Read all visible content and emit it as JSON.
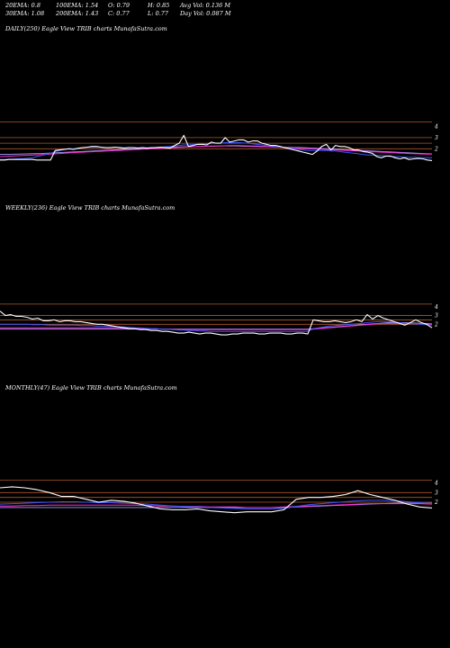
{
  "header": {
    "ema20": "20EMA: 0.8",
    "ema30": "30EMA: 1.08",
    "ema100": "100EMA: 1.54",
    "ema200": "200EMA: 1.43",
    "open": "O: 0.79",
    "close": "C: 0.77",
    "high": "H: 0.85",
    "low": "L: 0.77",
    "avg_vol": "Avg Vol: 0.136  M",
    "day_vol": "Day Vol: 0.087 M"
  },
  "colors": {
    "background": "#000000",
    "price": "#ffffff",
    "ema_short": "#3a56ff",
    "ema_mid": "#ff2ad4",
    "ema_long": "#a0a0ff",
    "level": "#b0562a"
  },
  "chart_data": [
    {
      "type": "line",
      "title": "DAILY(250) Eagle   View  TRIB charts MunafaSutra.com",
      "ylim": [
        0.5,
        5.0
      ],
      "yticks": [
        "4",
        "3",
        "2"
      ],
      "levels": [
        4.4,
        3.0,
        2.5,
        2.0
      ],
      "series": [
        {
          "key": "price",
          "values": [
            1.0,
            1.0,
            1.05,
            1.05,
            1.05,
            1.05,
            1.05,
            1.05,
            1.0,
            1.0,
            1.0,
            1.0,
            1.85,
            1.9,
            1.95,
            2.0,
            1.95,
            2.05,
            2.1,
            2.15,
            2.2,
            2.2,
            2.15,
            2.1,
            2.1,
            2.15,
            2.1,
            2.05,
            2.1,
            2.1,
            2.05,
            2.1,
            2.05,
            2.1,
            2.1,
            2.15,
            2.1,
            2.05,
            2.3,
            2.5,
            3.2,
            2.2,
            2.3,
            2.4,
            2.4,
            2.35,
            2.6,
            2.5,
            2.5,
            3.0,
            2.6,
            2.7,
            2.8,
            2.8,
            2.6,
            2.7,
            2.7,
            2.5,
            2.4,
            2.3,
            2.3,
            2.2,
            2.1,
            2.0,
            1.9,
            1.8,
            1.7,
            1.6,
            1.5,
            1.8,
            2.2,
            2.4,
            1.9,
            2.3,
            2.2,
            2.2,
            2.1,
            1.9,
            1.9,
            1.75,
            1.7,
            1.6,
            1.3,
            1.2,
            1.35,
            1.35,
            1.2,
            1.1,
            1.2,
            1.05,
            1.1,
            1.15,
            1.1,
            1.0,
            0.95
          ]
        },
        {
          "key": "ema_short",
          "values": [
            1.05,
            1.05,
            1.07,
            1.08,
            1.1,
            1.12,
            1.15,
            1.2,
            1.3,
            1.4,
            1.5,
            1.6,
            1.75,
            1.85,
            1.95,
            2.0,
            2.0,
            2.05,
            2.1,
            2.12,
            2.15,
            2.15,
            2.12,
            2.1,
            2.1,
            2.12,
            2.12,
            2.1,
            2.1,
            2.1,
            2.1,
            2.1,
            2.1,
            2.1,
            2.12,
            2.15,
            2.18,
            2.2,
            2.25,
            2.3,
            2.35,
            2.35,
            2.38,
            2.4,
            2.42,
            2.45,
            2.48,
            2.5,
            2.5,
            2.55,
            2.55,
            2.55,
            2.55,
            2.52,
            2.5,
            2.45,
            2.4,
            2.35,
            2.3,
            2.25,
            2.2,
            2.15,
            2.1,
            2.05,
            2.0,
            1.95,
            1.9,
            1.85,
            1.85,
            1.85,
            1.85,
            1.85,
            1.8,
            1.8,
            1.75,
            1.7,
            1.65,
            1.6,
            1.55,
            1.5,
            1.45,
            1.45,
            1.4,
            1.4,
            1.35,
            1.3,
            1.3,
            1.3,
            1.25,
            1.25,
            1.25,
            1.2,
            1.2,
            1.2,
            1.2
          ]
        },
        {
          "key": "ema_mid",
          "values": [
            1.3,
            1.32,
            1.34,
            1.36,
            1.38,
            1.4,
            1.42,
            1.44,
            1.46,
            1.48,
            1.5,
            1.52,
            1.55,
            1.58,
            1.6,
            1.63,
            1.66,
            1.68,
            1.7,
            1.72,
            1.74,
            1.76,
            1.78,
            1.8,
            1.82,
            1.84,
            1.86,
            1.88,
            1.9,
            1.92,
            1.94,
            1.96,
            1.98,
            2.0,
            2.02,
            2.04,
            2.06,
            2.08,
            2.1,
            2.12,
            2.14,
            2.16,
            2.18,
            2.2,
            2.22,
            2.23,
            2.24,
            2.25,
            2.26,
            2.27,
            2.28,
            2.28,
            2.28,
            2.27,
            2.26,
            2.25,
            2.24,
            2.22,
            2.2,
            2.18,
            2.16,
            2.14,
            2.12,
            2.1,
            2.08,
            2.06,
            2.04,
            2.02,
            2.0,
            1.98,
            1.96,
            1.94,
            1.92,
            1.9,
            1.88,
            1.86,
            1.84,
            1.82,
            1.8,
            1.78,
            1.76,
            1.74,
            1.72,
            1.7,
            1.68,
            1.66,
            1.64,
            1.62,
            1.6,
            1.58,
            1.56,
            1.55,
            1.54,
            1.53,
            1.52
          ]
        },
        {
          "key": "ema_long",
          "values": [
            1.5,
            1.5,
            1.51,
            1.52,
            1.53,
            1.54,
            1.55,
            1.56,
            1.57,
            1.58,
            1.6,
            1.62,
            1.64,
            1.66,
            1.68,
            1.7,
            1.72,
            1.74,
            1.76,
            1.78,
            1.8,
            1.82,
            1.84,
            1.86,
            1.88,
            1.9,
            1.92,
            1.94,
            1.96,
            1.98,
            2.0,
            2.02,
            2.04,
            2.06,
            2.08,
            2.1,
            2.12,
            2.14,
            2.15,
            2.16,
            2.17,
            2.18,
            2.19,
            2.2,
            2.21,
            2.22,
            2.23,
            2.24,
            2.25,
            2.25,
            2.25,
            2.25,
            2.24,
            2.23,
            2.22,
            2.21,
            2.2,
            2.19,
            2.18,
            2.17,
            2.16,
            2.15,
            2.14,
            2.13,
            2.12,
            2.11,
            2.1,
            2.08,
            2.06,
            2.04,
            2.02,
            2.0,
            1.98,
            1.96,
            1.94,
            1.92,
            1.9,
            1.88,
            1.86,
            1.84,
            1.82,
            1.8,
            1.78,
            1.76,
            1.74,
            1.72,
            1.7,
            1.68,
            1.66,
            1.64,
            1.62,
            1.6,
            1.58,
            1.56,
            1.55
          ]
        }
      ]
    },
    {
      "type": "line",
      "title": "WEEKLY(236) Eagle   View  TRIB charts MunafaSutra.com",
      "ylim": [
        0.5,
        5.0
      ],
      "yticks": [
        "4",
        "3",
        "2"
      ],
      "levels": [
        4.3,
        3.0,
        2.5,
        2.0
      ],
      "series": [
        {
          "key": "price",
          "values": [
            3.5,
            3.0,
            3.1,
            2.9,
            2.9,
            2.8,
            2.6,
            2.7,
            2.4,
            2.4,
            2.5,
            2.3,
            2.4,
            2.4,
            2.3,
            2.3,
            2.2,
            2.1,
            2.0,
            2.0,
            1.9,
            1.8,
            1.7,
            1.6,
            1.5,
            1.5,
            1.4,
            1.4,
            1.3,
            1.3,
            1.2,
            1.2,
            1.1,
            1.0,
            1.0,
            1.1,
            1.0,
            0.9,
            1.0,
            1.0,
            0.9,
            0.8,
            0.8,
            0.9,
            0.9,
            1.0,
            1.0,
            1.0,
            0.9,
            0.9,
            1.0,
            1.0,
            1.0,
            0.9,
            0.9,
            1.0,
            1.0,
            0.9,
            2.5,
            2.4,
            2.3,
            2.3,
            2.4,
            2.3,
            2.2,
            2.3,
            2.5,
            2.3,
            3.1,
            2.6,
            3.0,
            2.7,
            2.5,
            2.3,
            2.1,
            1.9,
            2.2,
            2.5,
            2.2,
            2.0,
            1.6
          ]
        },
        {
          "key": "ema_short",
          "values": [
            2.0,
            2.0,
            2.0,
            2.0,
            2.0,
            2.0,
            1.95,
            1.95,
            1.95,
            1.9,
            1.9,
            1.9,
            1.9,
            1.9,
            1.9,
            1.85,
            1.85,
            1.85,
            1.8,
            1.8,
            1.75,
            1.75,
            1.7,
            1.7,
            1.65,
            1.6,
            1.6,
            1.55,
            1.5,
            1.5,
            1.45,
            1.45,
            1.4,
            1.35,
            1.35,
            1.3,
            1.3,
            1.25,
            1.25,
            1.2,
            1.2,
            1.2,
            1.2,
            1.2,
            1.2,
            1.2,
            1.2,
            1.2,
            1.2,
            1.2,
            1.2,
            1.2,
            1.2,
            1.2,
            1.2,
            1.2,
            1.2,
            1.2,
            1.5,
            1.6,
            1.7,
            1.8,
            1.85,
            1.9,
            1.95,
            2.0,
            2.05,
            2.1,
            2.2,
            2.25,
            2.3,
            2.3,
            2.3,
            2.25,
            2.2,
            2.1,
            2.05,
            2.05,
            2.0,
            1.95,
            1.9
          ]
        },
        {
          "key": "ema_mid",
          "values": [
            1.6,
            1.6,
            1.6,
            1.6,
            1.6,
            1.6,
            1.6,
            1.6,
            1.6,
            1.6,
            1.6,
            1.6,
            1.6,
            1.6,
            1.6,
            1.6,
            1.6,
            1.6,
            1.6,
            1.6,
            1.6,
            1.6,
            1.6,
            1.55,
            1.55,
            1.55,
            1.5,
            1.5,
            1.5,
            1.5,
            1.45,
            1.45,
            1.45,
            1.4,
            1.4,
            1.4,
            1.4,
            1.4,
            1.4,
            1.4,
            1.4,
            1.4,
            1.4,
            1.4,
            1.4,
            1.4,
            1.4,
            1.4,
            1.4,
            1.4,
            1.4,
            1.4,
            1.4,
            1.4,
            1.4,
            1.4,
            1.4,
            1.4,
            1.45,
            1.5,
            1.55,
            1.6,
            1.65,
            1.7,
            1.75,
            1.8,
            1.85,
            1.9,
            1.95,
            2.0,
            2.05,
            2.1,
            2.1,
            2.1,
            2.1,
            2.1,
            2.1,
            2.05,
            2.05,
            2.0,
            2.0
          ]
        },
        {
          "key": "ema_long",
          "values": [
            1.45,
            1.45,
            1.45,
            1.45,
            1.45,
            1.45,
            1.45,
            1.45,
            1.45,
            1.45,
            1.45,
            1.45,
            1.45,
            1.45,
            1.45,
            1.45,
            1.45,
            1.45,
            1.45,
            1.45,
            1.45,
            1.45,
            1.45,
            1.45,
            1.45,
            1.45,
            1.45,
            1.45,
            1.45,
            1.45,
            1.45,
            1.45,
            1.45,
            1.45,
            1.45,
            1.45,
            1.45,
            1.45,
            1.45,
            1.45,
            1.45,
            1.45,
            1.45,
            1.45,
            1.45,
            1.45,
            1.45,
            1.45,
            1.45,
            1.45,
            1.45,
            1.45,
            1.45,
            1.45,
            1.45,
            1.45,
            1.45,
            1.45,
            1.5,
            1.55,
            1.6,
            1.65,
            1.7,
            1.75,
            1.8,
            1.85,
            1.9,
            1.95,
            2.0,
            2.05,
            2.1,
            2.15,
            2.2,
            2.2,
            2.2,
            2.2,
            2.15,
            2.15,
            2.1,
            2.1,
            2.05
          ]
        }
      ]
    },
    {
      "type": "line",
      "title": "MONTHLY(47) Eagle   View  TRIB charts MunafaSutra.com",
      "ylim": [
        0.5,
        5.0
      ],
      "yticks": [
        "4",
        "3",
        "2"
      ],
      "levels": [
        4.3,
        3.0,
        2.5,
        2.0
      ],
      "series": [
        {
          "key": "price",
          "values": [
            3.5,
            3.6,
            3.5,
            3.3,
            3.0,
            2.6,
            2.6,
            2.3,
            2.0,
            2.2,
            2.1,
            1.9,
            1.6,
            1.3,
            1.2,
            1.2,
            1.3,
            1.1,
            1.0,
            0.9,
            1.0,
            1.0,
            1.0,
            1.2,
            2.3,
            2.5,
            2.5,
            2.6,
            2.8,
            3.2,
            2.8,
            2.5,
            2.2,
            1.8,
            1.5,
            1.4
          ]
        },
        {
          "key": "ema_short",
          "values": [
            1.8,
            1.85,
            1.9,
            1.95,
            2.0,
            2.05,
            2.05,
            2.0,
            1.95,
            1.95,
            1.9,
            1.85,
            1.8,
            1.7,
            1.6,
            1.55,
            1.5,
            1.45,
            1.4,
            1.35,
            1.3,
            1.3,
            1.3,
            1.35,
            1.55,
            1.75,
            1.85,
            1.95,
            2.05,
            2.15,
            2.2,
            2.2,
            2.15,
            2.05,
            1.95,
            1.85
          ]
        },
        {
          "key": "ema_mid",
          "values": [
            1.6,
            1.6,
            1.65,
            1.65,
            1.7,
            1.7,
            1.7,
            1.7,
            1.7,
            1.7,
            1.7,
            1.7,
            1.65,
            1.6,
            1.6,
            1.55,
            1.55,
            1.5,
            1.5,
            1.5,
            1.45,
            1.45,
            1.45,
            1.5,
            1.55,
            1.6,
            1.65,
            1.7,
            1.75,
            1.8,
            1.85,
            1.85,
            1.85,
            1.85,
            1.85,
            1.8
          ]
        },
        {
          "key": "ema_long",
          "values": [
            1.45,
            1.45,
            1.45,
            1.45,
            1.45,
            1.45,
            1.45,
            1.45,
            1.45,
            1.45,
            1.45,
            1.45,
            1.45,
            1.45,
            1.45,
            1.45,
            1.45,
            1.45,
            1.45,
            1.45,
            1.45,
            1.45,
            1.45,
            1.45,
            1.5,
            1.55,
            1.6,
            1.65,
            1.7,
            1.75,
            1.8,
            1.85,
            1.9,
            1.9,
            1.9,
            1.9
          ]
        }
      ]
    }
  ]
}
